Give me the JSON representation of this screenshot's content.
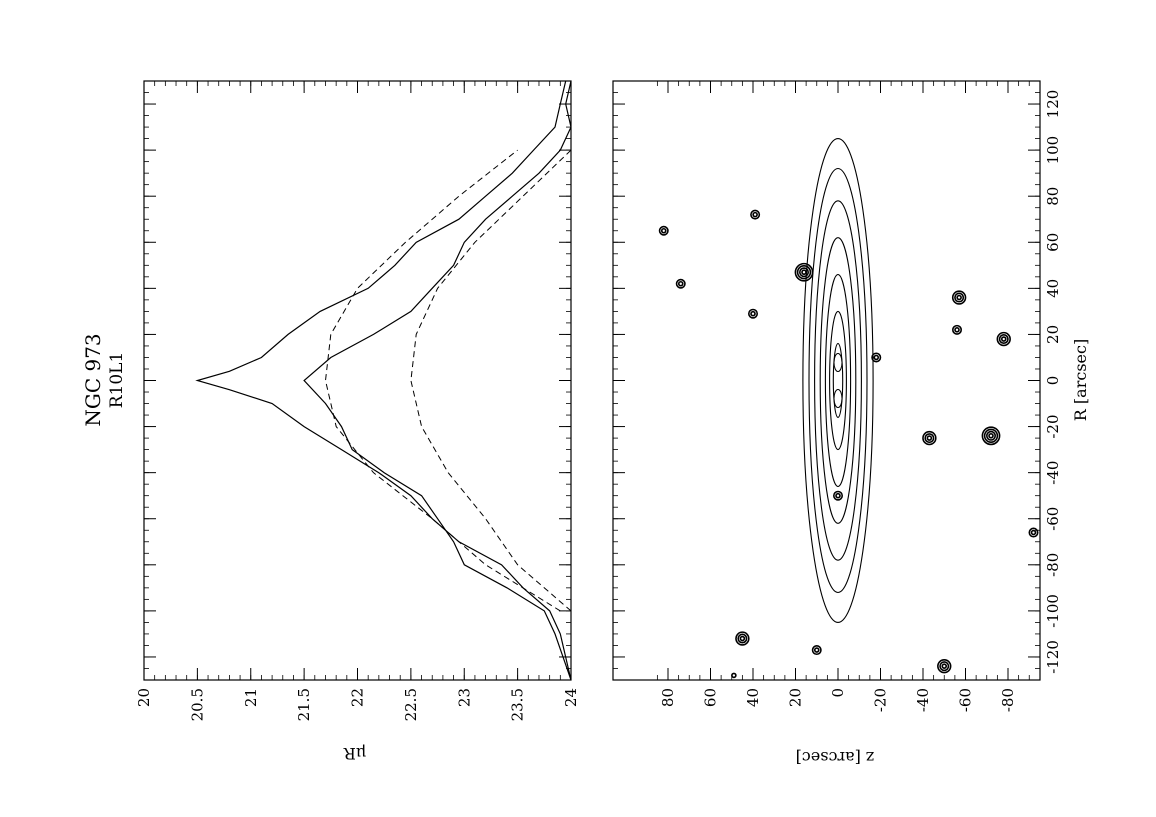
{
  "header": {
    "title": "NGC 973",
    "subtitle": "R10L1"
  },
  "chart_data": [
    {
      "type": "line",
      "panel": "surface-brightness-profiles",
      "xlabel": "",
      "ylabel": "μR",
      "xlim": [
        -130,
        130
      ],
      "ylim": [
        20,
        24
      ],
      "y_inverted": true,
      "ytick_labels": [
        "20",
        "20.5",
        "21",
        "21.5",
        "22",
        "22.5",
        "23",
        "23.5",
        "24"
      ],
      "grid": false,
      "series": [
        {
          "style": "solid",
          "x": [
            -130,
            -110,
            -100,
            -90,
            -80,
            -70,
            -60,
            -50,
            -40,
            -30,
            -20,
            -10,
            -4,
            0,
            4,
            10,
            20,
            30,
            40,
            50,
            60,
            70,
            80,
            90,
            100,
            110,
            120,
            130
          ],
          "y": [
            24.0,
            23.9,
            23.8,
            23.55,
            23.35,
            22.95,
            22.7,
            22.5,
            22.2,
            21.85,
            21.5,
            21.2,
            20.8,
            20.5,
            20.8,
            21.1,
            21.35,
            21.65,
            22.1,
            22.35,
            22.55,
            22.95,
            23.2,
            23.45,
            23.65,
            23.85,
            23.9,
            23.95
          ]
        },
        {
          "style": "solid",
          "x": [
            -130,
            -110,
            -100,
            -90,
            -80,
            -70,
            -60,
            -50,
            -40,
            -30,
            -20,
            -10,
            0,
            10,
            20,
            30,
            40,
            50,
            60,
            70,
            80,
            90,
            100,
            110,
            120,
            130
          ],
          "y": [
            24.0,
            23.85,
            23.75,
            23.4,
            23.0,
            22.9,
            22.75,
            22.6,
            22.25,
            21.95,
            21.85,
            21.7,
            21.5,
            21.75,
            22.15,
            22.5,
            22.7,
            22.9,
            23.0,
            23.2,
            23.45,
            23.7,
            23.9,
            24.0,
            23.95,
            24.0
          ]
        },
        {
          "style": "dashed",
          "x": [
            -100,
            -80,
            -60,
            -40,
            -20,
            0,
            20,
            40,
            60,
            80,
            100
          ],
          "y": [
            23.9,
            23.2,
            22.7,
            22.15,
            21.8,
            21.7,
            21.75,
            22.0,
            22.45,
            22.95,
            23.5
          ]
        },
        {
          "style": "dashed",
          "x": [
            -100,
            -80,
            -60,
            -40,
            -20,
            0,
            20,
            40,
            60,
            80,
            100
          ],
          "y": [
            24.0,
            23.5,
            23.2,
            22.85,
            22.6,
            22.5,
            22.55,
            22.75,
            23.1,
            23.55,
            24.0
          ]
        }
      ]
    },
    {
      "type": "contour",
      "panel": "isophote-map",
      "xlabel": "R [arcsec]",
      "ylabel": "z [arcsec]",
      "xlim": [
        -130,
        130
      ],
      "ylim": [
        -95,
        90
      ],
      "y_inverted": true,
      "xtick_labels": [
        "-120",
        "-100",
        "-80",
        "-60",
        "-40",
        "-20",
        "0",
        "20",
        "40",
        "60",
        "80",
        "100",
        "120"
      ],
      "ytick_labels": [
        "80",
        "60",
        "40",
        "20",
        "0",
        "-20",
        "-40",
        "-60",
        "-80"
      ],
      "galaxy_isophotes": [
        {
          "semi_major": 105,
          "semi_minor": 7.5
        },
        {
          "semi_major": 92,
          "semi_minor": 6.2
        },
        {
          "semi_major": 78,
          "semi_minor": 5.0
        },
        {
          "semi_major": 62,
          "semi_minor": 3.8
        },
        {
          "semi_major": 46,
          "semi_minor": 2.7
        },
        {
          "semi_major": 30,
          "semi_minor": 1.8
        },
        {
          "semi_major": 16,
          "semi_minor": 1.0
        }
      ],
      "stars": [
        {
          "x": -112,
          "z": 45,
          "size": 3
        },
        {
          "x": -117,
          "z": 10,
          "size": 2
        },
        {
          "x": -124,
          "z": -50,
          "size": 2.5
        },
        {
          "x": -50,
          "z": 0,
          "size": 1.5
        },
        {
          "x": -25,
          "z": -43,
          "size": 2.5
        },
        {
          "x": -24,
          "z": -72,
          "size": 3.5
        },
        {
          "x": 10,
          "z": -18,
          "size": 2
        },
        {
          "x": 18,
          "z": -78,
          "size": 2.5
        },
        {
          "x": 22,
          "z": -56,
          "size": 1.5
        },
        {
          "x": 29,
          "z": 40,
          "size": 1.5
        },
        {
          "x": 36,
          "z": -57,
          "size": 2.5
        },
        {
          "x": 42,
          "z": 74,
          "size": 1.5
        },
        {
          "x": 47,
          "z": 16,
          "size": 3.5
        },
        {
          "x": 65,
          "z": 82,
          "size": 1.5
        },
        {
          "x": 72,
          "z": 39,
          "size": 2
        },
        {
          "x": -66,
          "z": -92,
          "size": 1.5
        },
        {
          "x": -128,
          "z": 49,
          "size": 1
        }
      ]
    }
  ]
}
